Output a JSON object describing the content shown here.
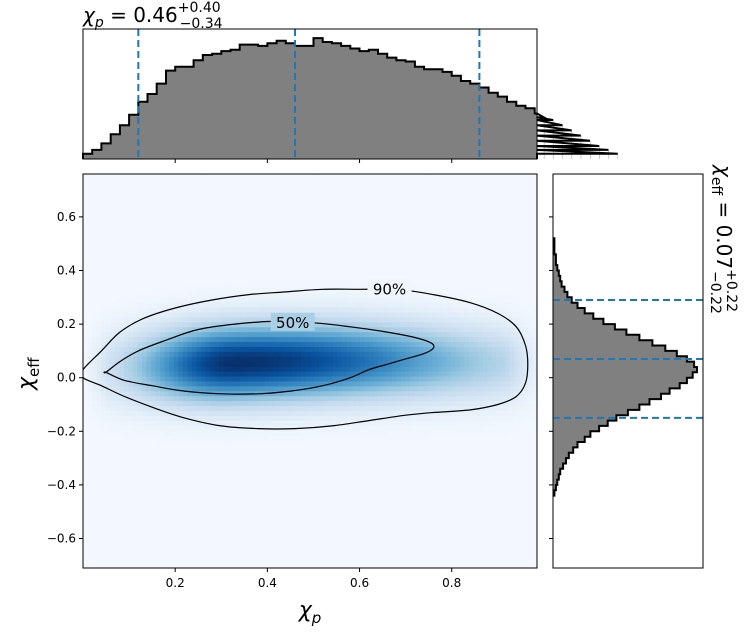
{
  "chart_data": [
    {
      "type": "histogram",
      "panel": "top",
      "variable": "chi_p",
      "title_main": "χ",
      "title_sub": "p",
      "title_value": " = 0.46",
      "title_plus": "+0.40",
      "title_minus": "−0.34",
      "xlim": [
        0.0,
        0.985
      ],
      "bin_width": 0.02,
      "bin_start": 0.0,
      "counts": [
        0.04,
        0.07,
        0.12,
        0.19,
        0.26,
        0.34,
        0.44,
        0.5,
        0.58,
        0.68,
        0.71,
        0.71,
        0.76,
        0.8,
        0.81,
        0.83,
        0.84,
        0.88,
        0.88,
        0.87,
        0.89,
        0.91,
        0.89,
        0.87,
        0.87,
        0.93,
        0.9,
        0.89,
        0.87,
        0.85,
        0.83,
        0.84,
        0.81,
        0.78,
        0.76,
        0.75,
        0.71,
        0.69,
        0.69,
        0.67,
        0.64,
        0.6,
        0.58,
        0.55,
        0.51,
        0.48,
        0.44,
        0.41,
        0.39,
        0.35,
        0.32,
        0.3,
        0.26,
        0.22,
        0.18,
        0.14,
        0.1,
        0.07,
        0.04
      ],
      "quantile_lines": [
        0.12,
        0.46,
        0.86
      ],
      "fill_color": "#808080",
      "line_color": "#1f77b4"
    },
    {
      "type": "heatmap",
      "panel": "main",
      "xlabel_main": "χ",
      "xlabel_sub": "p",
      "ylabel_main": "χ",
      "ylabel_sub": "eff",
      "xlim": [
        0.0,
        0.985
      ],
      "ylim": [
        -0.71,
        0.76
      ],
      "xticks": [
        0.2,
        0.4,
        0.6,
        0.8
      ],
      "xtick_labels": [
        "0.2",
        "0.4",
        "0.6",
        "0.8"
      ],
      "yticks": [
        -0.6,
        -0.4,
        -0.2,
        0.0,
        0.2,
        0.4,
        0.6
      ],
      "ytick_labels": [
        "−0.6",
        "−0.4",
        "−0.2",
        "0.0",
        "0.2",
        "0.4",
        "0.6"
      ],
      "colormap": [
        "#f7fbff",
        "#deebf7",
        "#c6dbef",
        "#9ecae1",
        "#6baed6",
        "#4292c6",
        "#2171b5",
        "#08519c",
        "#08306b"
      ],
      "density_peak": {
        "x": 0.33,
        "y": 0.04
      },
      "contours": [
        {
          "label": "90%",
          "label_at": [
            0.665,
            0.33
          ],
          "points": [
            [
              0.0,
              0.03
            ],
            [
              0.04,
              0.1
            ],
            [
              0.08,
              0.17
            ],
            [
              0.13,
              0.22
            ],
            [
              0.2,
              0.26
            ],
            [
              0.28,
              0.29
            ],
            [
              0.36,
              0.31
            ],
            [
              0.44,
              0.32
            ],
            [
              0.52,
              0.33
            ],
            [
              0.6,
              0.33
            ],
            [
              0.68,
              0.33
            ],
            [
              0.76,
              0.31
            ],
            [
              0.84,
              0.28
            ],
            [
              0.9,
              0.24
            ],
            [
              0.94,
              0.19
            ],
            [
              0.96,
              0.12
            ],
            [
              0.965,
              0.05
            ],
            [
              0.96,
              -0.02
            ],
            [
              0.94,
              -0.07
            ],
            [
              0.9,
              -0.1
            ],
            [
              0.84,
              -0.12
            ],
            [
              0.76,
              -0.13
            ],
            [
              0.7,
              -0.14
            ],
            [
              0.62,
              -0.16
            ],
            [
              0.54,
              -0.18
            ],
            [
              0.46,
              -0.19
            ],
            [
              0.38,
              -0.19
            ],
            [
              0.3,
              -0.18
            ],
            [
              0.22,
              -0.15
            ],
            [
              0.15,
              -0.11
            ],
            [
              0.09,
              -0.07
            ],
            [
              0.04,
              -0.03
            ],
            [
              0.0,
              0.0
            ]
          ]
        },
        {
          "label": "50%",
          "label_at": [
            0.455,
            0.205
          ],
          "points": [
            [
              0.05,
              0.02
            ],
            [
              0.08,
              0.06
            ],
            [
              0.12,
              0.1
            ],
            [
              0.18,
              0.14
            ],
            [
              0.25,
              0.18
            ],
            [
              0.33,
              0.2
            ],
            [
              0.41,
              0.21
            ],
            [
              0.5,
              0.205
            ],
            [
              0.58,
              0.19
            ],
            [
              0.66,
              0.17
            ],
            [
              0.72,
              0.15
            ],
            [
              0.755,
              0.13
            ],
            [
              0.76,
              0.11
            ],
            [
              0.74,
              0.09
            ],
            [
              0.7,
              0.07
            ],
            [
              0.66,
              0.05
            ],
            [
              0.62,
              0.03
            ],
            [
              0.58,
              0.0
            ],
            [
              0.52,
              -0.03
            ],
            [
              0.45,
              -0.05
            ],
            [
              0.38,
              -0.06
            ],
            [
              0.3,
              -0.06
            ],
            [
              0.22,
              -0.05
            ],
            [
              0.15,
              -0.03
            ],
            [
              0.09,
              -0.01
            ],
            [
              0.05,
              0.02
            ]
          ]
        }
      ]
    },
    {
      "type": "histogram",
      "panel": "right",
      "orientation": "horizontal",
      "variable": "chi_eff",
      "title_main": "χ",
      "title_sub": "eff",
      "title_value": " = 0.07",
      "title_plus": "+0.22",
      "title_minus": "−0.22",
      "ylim": [
        -0.71,
        0.76
      ],
      "bin_width": 0.02,
      "bin_start": -0.44,
      "counts": [
        0.01,
        0.02,
        0.03,
        0.04,
        0.05,
        0.07,
        0.09,
        0.11,
        0.14,
        0.17,
        0.22,
        0.26,
        0.32,
        0.38,
        0.44,
        0.52,
        0.6,
        0.67,
        0.75,
        0.81,
        0.88,
        0.93,
        0.97,
        1.0,
        0.98,
        0.93,
        0.86,
        0.78,
        0.69,
        0.6,
        0.51,
        0.43,
        0.35,
        0.28,
        0.22,
        0.17,
        0.13,
        0.1,
        0.08,
        0.06,
        0.05,
        0.04,
        0.03,
        0.02,
        0.02,
        0.01,
        0.01,
        0.01
      ],
      "quantile_lines": [
        -0.15,
        0.07,
        0.29
      ],
      "fill_color": "#808080",
      "line_color": "#1f77b4"
    }
  ]
}
